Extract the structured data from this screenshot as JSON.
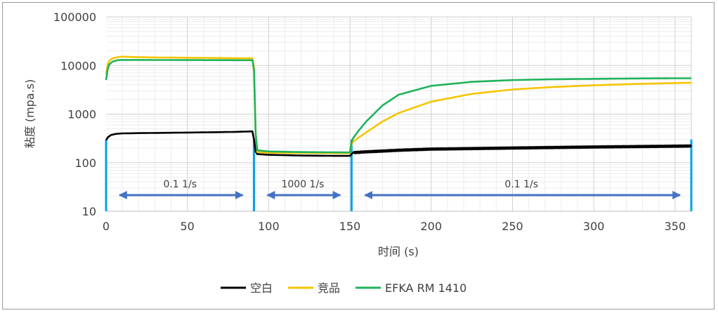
{
  "chart_data": {
    "type": "line",
    "title": "",
    "xlabel": "时间 (s)",
    "ylabel": "粘度 (mpa.s)",
    "xlim": [
      0,
      360
    ],
    "ylim": [
      10,
      100000
    ],
    "yscale": "log",
    "grid": true,
    "legend_position": "bottom",
    "x_ticks": [
      "0",
      "50",
      "100",
      "150",
      "200",
      "250",
      "300",
      "350"
    ],
    "x_tick_values": [
      0,
      50,
      100,
      150,
      200,
      250,
      300,
      350
    ],
    "y_ticks": [
      "10",
      "100",
      "1000",
      "10000",
      "100000"
    ],
    "y_tick_values": [
      10,
      100,
      1000,
      10000,
      100000
    ],
    "series": [
      {
        "name": "空白",
        "color": "#000000",
        "x": [
          0,
          1,
          3,
          6,
          10,
          20,
          40,
          60,
          80,
          90,
          91,
          92,
          93,
          100,
          120,
          140,
          150,
          151,
          152,
          155,
          160,
          170,
          180,
          200,
          250,
          300,
          350,
          360
        ],
        "y": [
          290,
          330,
          370,
          390,
          400,
          405,
          412,
          420,
          430,
          440,
          300,
          170,
          150,
          145,
          140,
          138,
          138,
          150,
          160,
          163,
          167,
          173,
          180,
          190,
          200,
          210,
          218,
          220
        ]
      },
      {
        "name": "竞品",
        "color": "#f5c400",
        "x": [
          0,
          1,
          2,
          4,
          7,
          10,
          15,
          20,
          30,
          50,
          70,
          90,
          91,
          92,
          93,
          100,
          120,
          140,
          150,
          151,
          152,
          155,
          160,
          170,
          180,
          200,
          225,
          250,
          275,
          300,
          325,
          350,
          360
        ],
        "y": [
          6500,
          10500,
          12500,
          14000,
          14800,
          15200,
          15000,
          14800,
          14600,
          14400,
          14200,
          14000,
          9000,
          400,
          165,
          160,
          158,
          157,
          157,
          240,
          270,
          320,
          420,
          700,
          1050,
          1800,
          2600,
          3200,
          3600,
          3900,
          4150,
          4350,
          4400
        ]
      },
      {
        "name": "EFKA RM 1410",
        "color": "#1fb35a",
        "x": [
          0,
          1,
          2,
          4,
          7,
          10,
          15,
          20,
          30,
          50,
          70,
          90,
          91,
          92,
          93,
          100,
          120,
          140,
          150,
          151,
          152,
          155,
          160,
          170,
          180,
          200,
          225,
          250,
          275,
          300,
          325,
          350,
          360
        ],
        "y": [
          5000,
          8500,
          10500,
          12000,
          12800,
          13000,
          13000,
          13000,
          12950,
          12900,
          12850,
          12800,
          8000,
          400,
          180,
          170,
          165,
          163,
          162,
          270,
          320,
          440,
          700,
          1500,
          2500,
          3800,
          4600,
          5000,
          5200,
          5300,
          5400,
          5450,
          5450
        ]
      }
    ],
    "annotations": [
      {
        "text": "0.1 1/s",
        "from": 0,
        "to": 91
      },
      {
        "text": "1000 1/s",
        "from": 91,
        "to": 151
      },
      {
        "text": "0.1 1/s",
        "from": 151,
        "to": 360
      }
    ],
    "markers": [
      0,
      91,
      151,
      360
    ]
  }
}
